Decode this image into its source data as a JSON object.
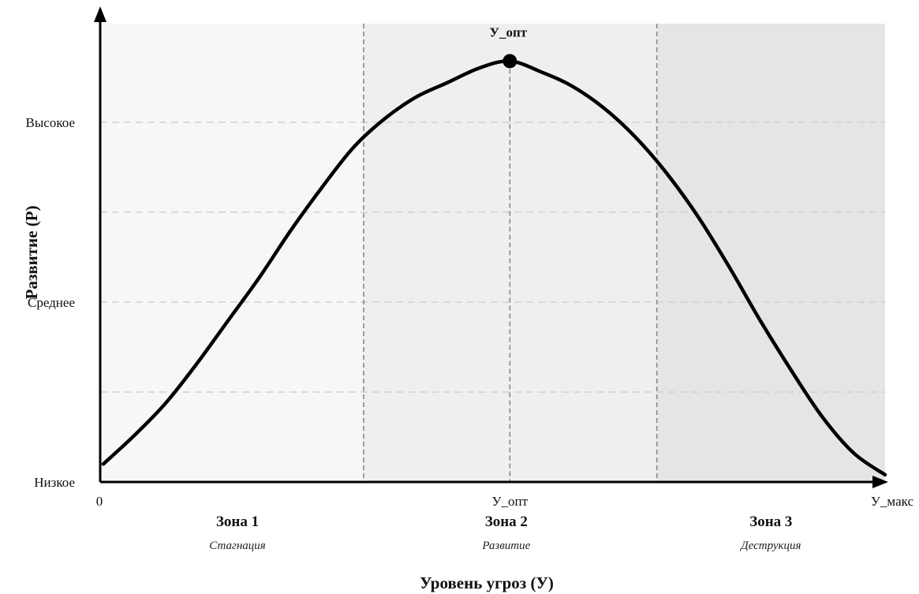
{
  "chart_data": {
    "type": "line",
    "xlabel": "Уровень угроз (У)",
    "ylabel": "Развитие (Р)",
    "xlim": [
      0,
      1
    ],
    "ylim": [
      0,
      1
    ],
    "x_ticks": [
      {
        "value": 0,
        "label": "0"
      },
      {
        "value": 0.52,
        "label": "У_опт"
      },
      {
        "value": 1.0,
        "label": "У_макс"
      }
    ],
    "y_ticks": [
      {
        "value": 0,
        "label": "Низкое"
      },
      {
        "value": 0.5,
        "label": "Среднее"
      },
      {
        "value": 1.0,
        "label": "Высокое"
      }
    ],
    "grid": "horizontal dashed",
    "zones": [
      {
        "name": "Зона 1",
        "description": "Стагнация",
        "from": 0,
        "to": 0.333,
        "color": "#f7f7f7"
      },
      {
        "name": "Зона 2",
        "description": "Развитие",
        "from": 0.333,
        "to": 0.708,
        "color": "#efefef"
      },
      {
        "name": "Зона 3",
        "description": "Деструкция",
        "from": 0.708,
        "to": 1.0,
        "color": "#e5e5e5"
      }
    ],
    "peak": {
      "x": 0.52,
      "y": 1.17,
      "label": "У_опт"
    },
    "series": [
      {
        "x": [
          0.0,
          0.04,
          0.08,
          0.12,
          0.16,
          0.2,
          0.24,
          0.28,
          0.32,
          0.36,
          0.4,
          0.44,
          0.48,
          0.52,
          0.56,
          0.6,
          0.64,
          0.68,
          0.72,
          0.76,
          0.8,
          0.84,
          0.88,
          0.92,
          0.96,
          1.0
        ],
        "y": [
          0.05,
          0.13,
          0.22,
          0.33,
          0.45,
          0.57,
          0.7,
          0.82,
          0.93,
          1.01,
          1.07,
          1.11,
          1.15,
          1.17,
          1.14,
          1.1,
          1.04,
          0.96,
          0.86,
          0.74,
          0.6,
          0.45,
          0.31,
          0.18,
          0.08,
          0.02
        ],
        "color": "#000000"
      }
    ]
  }
}
